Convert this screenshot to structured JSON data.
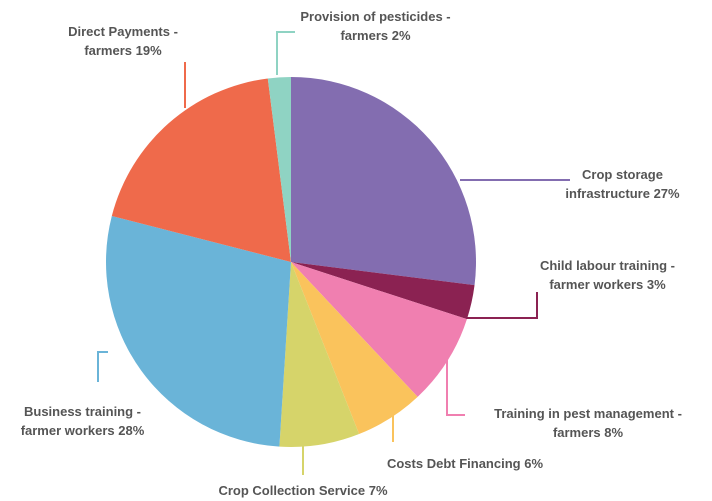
{
  "chart_data": {
    "type": "pie",
    "categories": [
      "Crop storage infrastructure",
      "Child labour training - farmer workers",
      "Training in pest management - farmers",
      "Costs Debt Financing",
      "Crop Collection Service",
      "Business training - farmer workers",
      "Direct Payments - farmers",
      "Provision of pesticides - farmers"
    ],
    "values": [
      27,
      3,
      8,
      6,
      7,
      28,
      19,
      2
    ],
    "value_labels": [
      "27%",
      "3%",
      "8%",
      "6%",
      "7%",
      "28%",
      "19%",
      "2%"
    ],
    "colors": [
      "#836db0",
      "#8b2252",
      "#f07fb0",
      "#fac35c",
      "#d6d46a",
      "#6ab4d8",
      "#ef6a4b",
      "#8fd3c3"
    ]
  }
}
